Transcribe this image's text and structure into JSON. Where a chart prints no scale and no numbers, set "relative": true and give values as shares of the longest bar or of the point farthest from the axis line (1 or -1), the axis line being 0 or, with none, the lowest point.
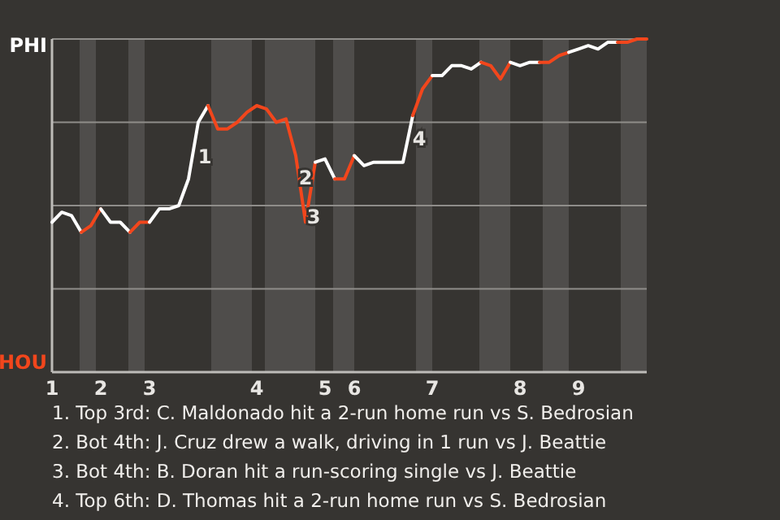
{
  "chart_data": {
    "type": "line",
    "relative": true,
    "categories": [
      "1",
      null,
      null,
      null,
      null,
      "2",
      null,
      null,
      null,
      null,
      "3",
      null,
      null,
      null,
      null,
      null,
      null,
      null,
      null,
      null,
      null,
      "4",
      null,
      null,
      null,
      null,
      null,
      null,
      "5",
      null,
      null,
      "6",
      null,
      null,
      null,
      null,
      null,
      null,
      null,
      "7",
      null,
      null,
      null,
      null,
      null,
      null,
      null,
      null,
      "8",
      null,
      null,
      null,
      null,
      null,
      "9",
      null,
      null,
      null,
      null,
      null,
      null,
      null
    ],
    "grid": "y",
    "marker": "none",
    "line_style": "solid",
    "series": [
      {
        "color": "#ffffff",
        "values": [
          0.45,
          0.48,
          0.47,
          0.42,
          null,
          null,
          null,
          null,
          null,
          null,
          null,
          null,
          null,
          null,
          null,
          null,
          null,
          null,
          null,
          null,
          null,
          null,
          null,
          null,
          null,
          null,
          null,
          null,
          null,
          null,
          null,
          null,
          null,
          null,
          null,
          null,
          null,
          null,
          null,
          null,
          null,
          null,
          null,
          null,
          null,
          null,
          null,
          null,
          null,
          null,
          null,
          null,
          null,
          null,
          null,
          null,
          null,
          null,
          null,
          null,
          null,
          null
        ]
      },
      {
        "color": "#f2461c",
        "values": [
          null,
          null,
          null,
          0.42,
          0.44,
          0.49,
          null,
          null,
          null,
          null,
          null,
          null,
          null,
          null,
          null,
          null,
          null,
          null,
          null,
          null,
          null,
          null,
          null,
          null,
          null,
          null,
          null,
          null,
          null,
          null,
          null,
          null,
          null,
          null,
          null,
          null,
          null,
          null,
          null,
          null,
          null,
          null,
          null,
          null,
          null,
          null,
          null,
          null,
          null,
          null,
          null,
          null,
          null,
          null,
          null,
          null,
          null,
          null,
          null,
          null,
          null,
          null
        ]
      },
      {
        "color": "#ffffff",
        "values": [
          null,
          null,
          null,
          null,
          null,
          0.49,
          0.45,
          0.45,
          0.42,
          null,
          null,
          null,
          null,
          null,
          null,
          null,
          null,
          null,
          null,
          null,
          null,
          null,
          null,
          null,
          null,
          null,
          null,
          null,
          null,
          null,
          null,
          null,
          null,
          null,
          null,
          null,
          null,
          null,
          null,
          null,
          null,
          null,
          null,
          null,
          null,
          null,
          null,
          null,
          null,
          null,
          null,
          null,
          null,
          null,
          null,
          null,
          null,
          null,
          null,
          null,
          null,
          null
        ]
      },
      {
        "color": "#f2461c",
        "values": [
          null,
          null,
          null,
          null,
          null,
          null,
          null,
          null,
          0.42,
          0.45,
          0.45,
          null,
          null,
          null,
          null,
          null,
          null,
          null,
          null,
          null,
          null,
          null,
          null,
          null,
          null,
          null,
          null,
          null,
          null,
          null,
          null,
          null,
          null,
          null,
          null,
          null,
          null,
          null,
          null,
          null,
          null,
          null,
          null,
          null,
          null,
          null,
          null,
          null,
          null,
          null,
          null,
          null,
          null,
          null,
          null,
          null,
          null,
          null,
          null,
          null,
          null,
          null
        ]
      },
      {
        "color": "#ffffff",
        "values": [
          null,
          null,
          null,
          null,
          null,
          null,
          null,
          null,
          null,
          null,
          0.45,
          0.49,
          0.49,
          0.5,
          0.58,
          0.75,
          0.8,
          null,
          null,
          null,
          null,
          null,
          null,
          null,
          null,
          null,
          null,
          null,
          null,
          null,
          null,
          null,
          null,
          null,
          null,
          null,
          null,
          null,
          null,
          null,
          null,
          null,
          null,
          null,
          null,
          null,
          null,
          null,
          null,
          null,
          null,
          null,
          null,
          null,
          null,
          null,
          null,
          null,
          null,
          null,
          null,
          null
        ]
      },
      {
        "color": "#f2461c",
        "values": [
          null,
          null,
          null,
          null,
          null,
          null,
          null,
          null,
          null,
          null,
          null,
          null,
          null,
          null,
          null,
          null,
          0.8,
          0.73,
          0.73,
          0.75,
          0.78,
          0.8,
          0.79,
          0.75,
          0.76,
          0.65,
          0.45,
          0.63,
          null,
          null,
          null,
          null,
          null,
          null,
          null,
          null,
          null,
          null,
          null,
          null,
          null,
          null,
          null,
          null,
          null,
          null,
          null,
          null,
          null,
          null,
          null,
          null,
          null,
          null,
          null,
          null,
          null,
          null,
          null,
          null,
          null,
          null
        ]
      },
      {
        "color": "#ffffff",
        "values": [
          null,
          null,
          null,
          null,
          null,
          null,
          null,
          null,
          null,
          null,
          null,
          null,
          null,
          null,
          null,
          null,
          null,
          null,
          null,
          null,
          null,
          null,
          null,
          null,
          null,
          null,
          null,
          0.63,
          0.64,
          0.58,
          null,
          null,
          null,
          null,
          null,
          null,
          null,
          null,
          null,
          null,
          null,
          null,
          null,
          null,
          null,
          null,
          null,
          null,
          null,
          null,
          null,
          null,
          null,
          null,
          null,
          null,
          null,
          null,
          null,
          null,
          null,
          null
        ]
      },
      {
        "color": "#f2461c",
        "values": [
          null,
          null,
          null,
          null,
          null,
          null,
          null,
          null,
          null,
          null,
          null,
          null,
          null,
          null,
          null,
          null,
          null,
          null,
          null,
          null,
          null,
          null,
          null,
          null,
          null,
          null,
          null,
          null,
          null,
          0.58,
          0.58,
          0.65,
          null,
          null,
          null,
          null,
          null,
          null,
          null,
          null,
          null,
          null,
          null,
          null,
          null,
          null,
          null,
          null,
          null,
          null,
          null,
          null,
          null,
          null,
          null,
          null,
          null,
          null,
          null,
          null,
          null,
          null
        ]
      },
      {
        "color": "#ffffff",
        "values": [
          null,
          null,
          null,
          null,
          null,
          null,
          null,
          null,
          null,
          null,
          null,
          null,
          null,
          null,
          null,
          null,
          null,
          null,
          null,
          null,
          null,
          null,
          null,
          null,
          null,
          null,
          null,
          null,
          null,
          null,
          null,
          0.65,
          0.62,
          0.63,
          0.63,
          0.63,
          0.63,
          0.77,
          null,
          null,
          null,
          null,
          null,
          null,
          null,
          null,
          null,
          null,
          null,
          null,
          null,
          null,
          null,
          null,
          null,
          null,
          null,
          null,
          null,
          null,
          null,
          null
        ]
      },
      {
        "color": "#f2461c",
        "values": [
          null,
          null,
          null,
          null,
          null,
          null,
          null,
          null,
          null,
          null,
          null,
          null,
          null,
          null,
          null,
          null,
          null,
          null,
          null,
          null,
          null,
          null,
          null,
          null,
          null,
          null,
          null,
          null,
          null,
          null,
          null,
          null,
          null,
          null,
          null,
          null,
          null,
          0.77,
          0.85,
          0.89,
          null,
          null,
          null,
          null,
          null,
          null,
          null,
          null,
          null,
          null,
          null,
          null,
          null,
          null,
          null,
          null,
          null,
          null,
          null,
          null,
          null,
          null
        ]
      },
      {
        "color": "#ffffff",
        "values": [
          null,
          null,
          null,
          null,
          null,
          null,
          null,
          null,
          null,
          null,
          null,
          null,
          null,
          null,
          null,
          null,
          null,
          null,
          null,
          null,
          null,
          null,
          null,
          null,
          null,
          null,
          null,
          null,
          null,
          null,
          null,
          null,
          null,
          null,
          null,
          null,
          null,
          null,
          null,
          0.89,
          0.89,
          0.92,
          0.92,
          0.91,
          0.93,
          null,
          null,
          null,
          null,
          null,
          null,
          null,
          null,
          null,
          null,
          null,
          null,
          null,
          null,
          null,
          null,
          null
        ]
      },
      {
        "color": "#f2461c",
        "values": [
          null,
          null,
          null,
          null,
          null,
          null,
          null,
          null,
          null,
          null,
          null,
          null,
          null,
          null,
          null,
          null,
          null,
          null,
          null,
          null,
          null,
          null,
          null,
          null,
          null,
          null,
          null,
          null,
          null,
          null,
          null,
          null,
          null,
          null,
          null,
          null,
          null,
          null,
          null,
          null,
          null,
          null,
          null,
          null,
          0.93,
          0.92,
          0.88,
          0.93,
          null,
          null,
          null,
          null,
          null,
          null,
          null,
          null,
          null,
          null,
          null,
          null,
          null,
          null
        ]
      },
      {
        "color": "#ffffff",
        "values": [
          null,
          null,
          null,
          null,
          null,
          null,
          null,
          null,
          null,
          null,
          null,
          null,
          null,
          null,
          null,
          null,
          null,
          null,
          null,
          null,
          null,
          null,
          null,
          null,
          null,
          null,
          null,
          null,
          null,
          null,
          null,
          null,
          null,
          null,
          null,
          null,
          null,
          null,
          null,
          null,
          null,
          null,
          null,
          null,
          null,
          null,
          null,
          0.93,
          0.92,
          0.93,
          0.93,
          null,
          null,
          null,
          null,
          null,
          null,
          null,
          null,
          null,
          null,
          null
        ]
      },
      {
        "color": "#f2461c",
        "values": [
          null,
          null,
          null,
          null,
          null,
          null,
          null,
          null,
          null,
          null,
          null,
          null,
          null,
          null,
          null,
          null,
          null,
          null,
          null,
          null,
          null,
          null,
          null,
          null,
          null,
          null,
          null,
          null,
          null,
          null,
          null,
          null,
          null,
          null,
          null,
          null,
          null,
          null,
          null,
          null,
          null,
          null,
          null,
          null,
          null,
          null,
          null,
          null,
          null,
          null,
          0.93,
          0.93,
          0.95,
          0.96,
          null,
          null,
          null,
          null,
          null,
          null,
          null,
          null
        ]
      },
      {
        "color": "#ffffff",
        "values": [
          null,
          null,
          null,
          null,
          null,
          null,
          null,
          null,
          null,
          null,
          null,
          null,
          null,
          null,
          null,
          null,
          null,
          null,
          null,
          null,
          null,
          null,
          null,
          null,
          null,
          null,
          null,
          null,
          null,
          null,
          null,
          null,
          null,
          null,
          null,
          null,
          null,
          null,
          null,
          null,
          null,
          null,
          null,
          null,
          null,
          null,
          null,
          null,
          null,
          null,
          null,
          null,
          null,
          0.96,
          0.97,
          0.98,
          0.97,
          0.99,
          0.99,
          null,
          null,
          null
        ]
      },
      {
        "color": "#f2461c",
        "values": [
          null,
          null,
          null,
          null,
          null,
          null,
          null,
          null,
          null,
          null,
          null,
          null,
          null,
          null,
          null,
          null,
          null,
          null,
          null,
          null,
          null,
          null,
          null,
          null,
          null,
          null,
          null,
          null,
          null,
          null,
          null,
          null,
          null,
          null,
          null,
          null,
          null,
          null,
          null,
          null,
          null,
          null,
          null,
          null,
          null,
          null,
          null,
          null,
          null,
          null,
          null,
          null,
          null,
          null,
          null,
          null,
          null,
          null,
          0.99,
          0.99,
          1,
          1
        ]
      }
    ],
    "annotations": [
      "PHI",
      "HOU",
      "1",
      "2",
      "3",
      "4",
      "1. Top 3rd: C. Maldonado hit a 2-run home run vs S. Bedrosian",
      "2. Bot 4th: J. Cruz drew a walk, driving in 1 run vs J. Beattie",
      "3. Bot 4th: B. Doran hit a run-scoring single vs J. Beattie",
      "4. Top 6th: D. Thomas hit a 2-run home run vs S. Bedrosian"
    ]
  }
}
